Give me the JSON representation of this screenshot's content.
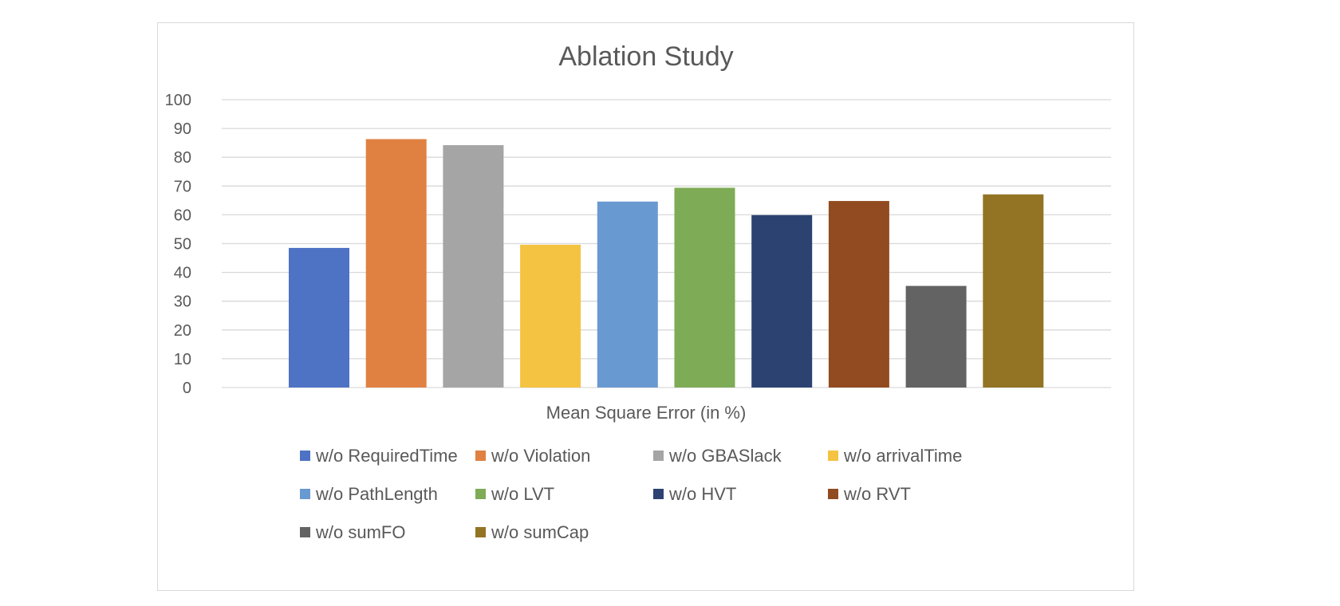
{
  "chart_data": {
    "type": "bar",
    "title": "Ablation Study",
    "xlabel": "Mean Square Error (in %)",
    "ylabel": "",
    "ylim": [
      0,
      100
    ],
    "yticks": [
      0,
      10,
      20,
      30,
      40,
      50,
      60,
      70,
      80,
      90,
      100
    ],
    "grid": true,
    "legend_position": "bottom",
    "categories": [
      "Mean Square Error (in %)"
    ],
    "series": [
      {
        "name": "w/o RequiredTime",
        "values": [
          48.5
        ],
        "color": "#4e72c4"
      },
      {
        "name": "w/o Violation",
        "values": [
          86.3
        ],
        "color": "#e08142"
      },
      {
        "name": "w/o GBASlack",
        "values": [
          84.2
        ],
        "color": "#a5a5a5"
      },
      {
        "name": "w/o arrivalTime",
        "values": [
          49.6
        ],
        "color": "#f5c342"
      },
      {
        "name": "w/o PathLength",
        "values": [
          64.6
        ],
        "color": "#6999d1"
      },
      {
        "name": "w/o LVT",
        "values": [
          69.4
        ],
        "color": "#7eab55"
      },
      {
        "name": "w/o HVT",
        "values": [
          59.9
        ],
        "color": "#2c4372"
      },
      {
        "name": "w/o RVT",
        "values": [
          64.8
        ],
        "color": "#924b20"
      },
      {
        "name": "w/o sumFO",
        "values": [
          35.3
        ],
        "color": "#636363"
      },
      {
        "name": "w/o sumCap",
        "values": [
          67.1
        ],
        "color": "#937424"
      }
    ]
  }
}
